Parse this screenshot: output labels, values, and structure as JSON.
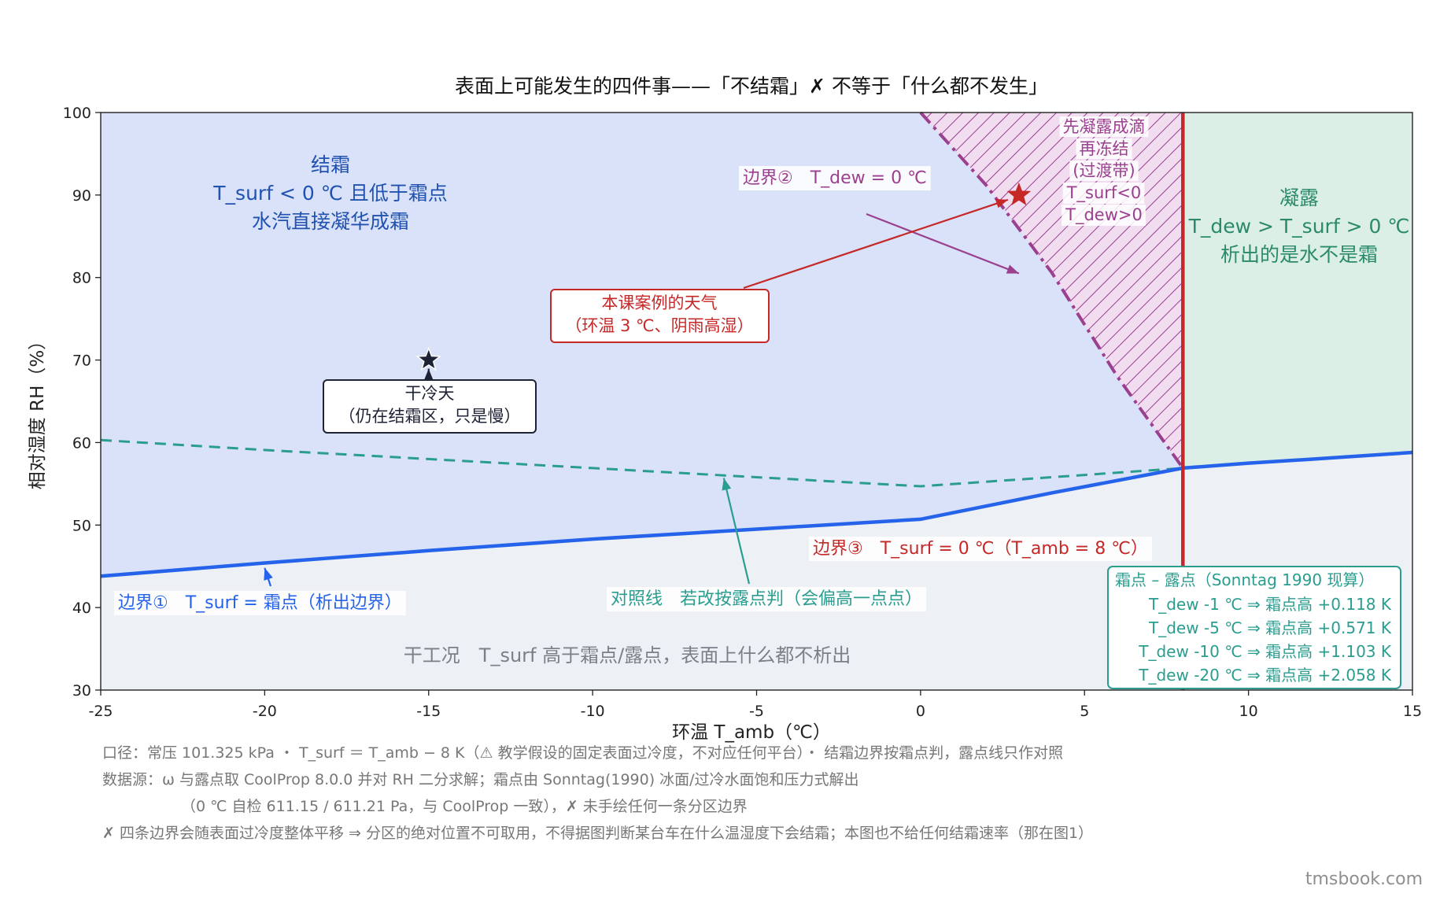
{
  "chart_data": {
    "type": "area",
    "title": "表面上可能发生的四件事——「不结霜」✗ 不等于「什么都不发生」",
    "xlabel": "环温 T_amb（℃）",
    "ylabel": "相对湿度 RH（%）",
    "xlim": [
      -25,
      15
    ],
    "ylim": [
      30,
      100
    ],
    "x_ticks": [
      -25,
      -20,
      -15,
      -10,
      -5,
      0,
      5,
      10,
      15
    ],
    "y_ticks": [
      30,
      40,
      50,
      60,
      70,
      80,
      90,
      100
    ],
    "x_tick_labels": [
      "-25",
      "-20",
      "-15",
      "-10",
      "-5",
      "0",
      "5",
      "10",
      "15"
    ],
    "y_tick_labels": [
      "30",
      "40",
      "50",
      "60",
      "70",
      "80",
      "90",
      "100"
    ],
    "grid": false,
    "series": [
      {
        "key": "frost_boundary",
        "style": "solid",
        "color": "#2563eb",
        "x": [
          -25,
          -20,
          -15,
          -10,
          -5,
          0,
          2,
          4,
          6,
          8,
          10,
          12,
          15
        ],
        "y": [
          43.8,
          45.4,
          46.9,
          48.3,
          49.5,
          50.7,
          52.3,
          53.9,
          55.4,
          56.9,
          57.5,
          58.0,
          58.8
        ]
      },
      {
        "key": "dew_reference",
        "style": "dashed",
        "color": "#2a9d8f",
        "x": [
          -25,
          -20,
          -15,
          -10,
          -5,
          0,
          4,
          8
        ],
        "y": [
          60.3,
          59.1,
          58.0,
          56.9,
          55.8,
          54.7,
          55.8,
          56.9
        ]
      },
      {
        "key": "dew_zero_boundary",
        "style": "dashdot",
        "color": "#9b3f8f",
        "x": [
          0,
          2,
          4,
          6,
          8
        ],
        "y": [
          100,
          91.2,
          80.6,
          68.0,
          56.9
        ]
      }
    ],
    "vline": {
      "x": 8,
      "color": "#c62828"
    },
    "regions": [
      {
        "key": "frost",
        "color": "#d9e2f8",
        "lines": [
          "结霜",
          "T_surf < 0 ℃ 且低于霜点",
          "水汽直接凝华成霜"
        ],
        "label_color": "#2152b0"
      },
      {
        "key": "dew",
        "color": "#dcefe6",
        "lines": [
          "凝露",
          "T_dew > T_surf > 0 ℃",
          "析出的是水不是霜"
        ],
        "label_color": "#2a8a6a"
      },
      {
        "key": "transition",
        "color": "#f2dcf0",
        "lines": [
          "先凝露成滴",
          "再冻结",
          "(过渡带)",
          "T_surf<0",
          "T_dew>0"
        ],
        "label_color": "#9b3f8f"
      },
      {
        "key": "dry",
        "color": "#edf0f5",
        "lines": [
          "干工况　T_surf 高于霜点/露点，表面上什么都不析出"
        ],
        "label_color": "#7a7f88"
      }
    ],
    "annotations": [
      {
        "key": "boundary1",
        "text": "边界①　T_surf = 霜点（析出边界）",
        "color": "#2563eb",
        "arrow_to": [
          -20,
          44.8
        ]
      },
      {
        "key": "boundary2",
        "text": "边界②　T_dew = 0 ℃",
        "color": "#9b3f8f",
        "arrow_to": [
          3,
          80.5
        ]
      },
      {
        "key": "boundary3",
        "text": "边界③　T_surf = 0 ℃（T_amb = 8 ℃）",
        "color": "#c62828"
      },
      {
        "key": "dewref",
        "text": "对照线　若改按露点判（会偏高一点点）",
        "color": "#2a9d8f",
        "arrow_to": [
          -6,
          55.7
        ]
      }
    ],
    "markers": [
      {
        "key": "case",
        "x": 3,
        "y": 90,
        "color": "#c62828",
        "label_lines": [
          "本课案例的天气",
          "（环温 3 ℃、阴雨高湿）"
        ]
      },
      {
        "key": "dry_cold",
        "x": -15,
        "y": 70,
        "color": "#1e2235",
        "label_lines": [
          "干冷天",
          "（仍在结霜区，只是慢）"
        ]
      }
    ],
    "inset_box": {
      "title": "霜点 – 露点（Sonntag 1990 现算）",
      "rows": [
        "T_dew -1 ℃ ⇒ 霜点高 +0.118 K",
        "T_dew -5 ℃ ⇒ 霜点高 +0.571 K",
        "T_dew -10 ℃ ⇒ 霜点高 +1.103 K",
        "T_dew -20 ℃ ⇒ 霜点高 +2.058 K"
      ],
      "color": "#2a9d8f"
    }
  },
  "footnotes": [
    "口径：常压 101.325 kPa ・ T_surf ＝ T_amb − 8 K（⚠ 教学假设的固定表面过冷度，不对应任何平台）・ 结霜边界按霜点判，露点线只作对照",
    "数据源：ω 与露点取 CoolProp 8.0.0 并对 RH 二分求解；霜点由 Sonntag(1990) 冰面/过冷水面饱和压力式解出",
    "（0 ℃ 自检 611.15 / 611.21 Pa，与 CoolProp 一致），✗ 未手绘任何一条分区边界",
    "✗ 四条边界会随表面过冷度整体平移 ⇒ 分区的绝对位置不可取用，不得据图判断某台车在什么温湿度下会结霜；本图也不给任何结霜速率（那在图1）"
  ],
  "watermark": "tmsbook.com"
}
